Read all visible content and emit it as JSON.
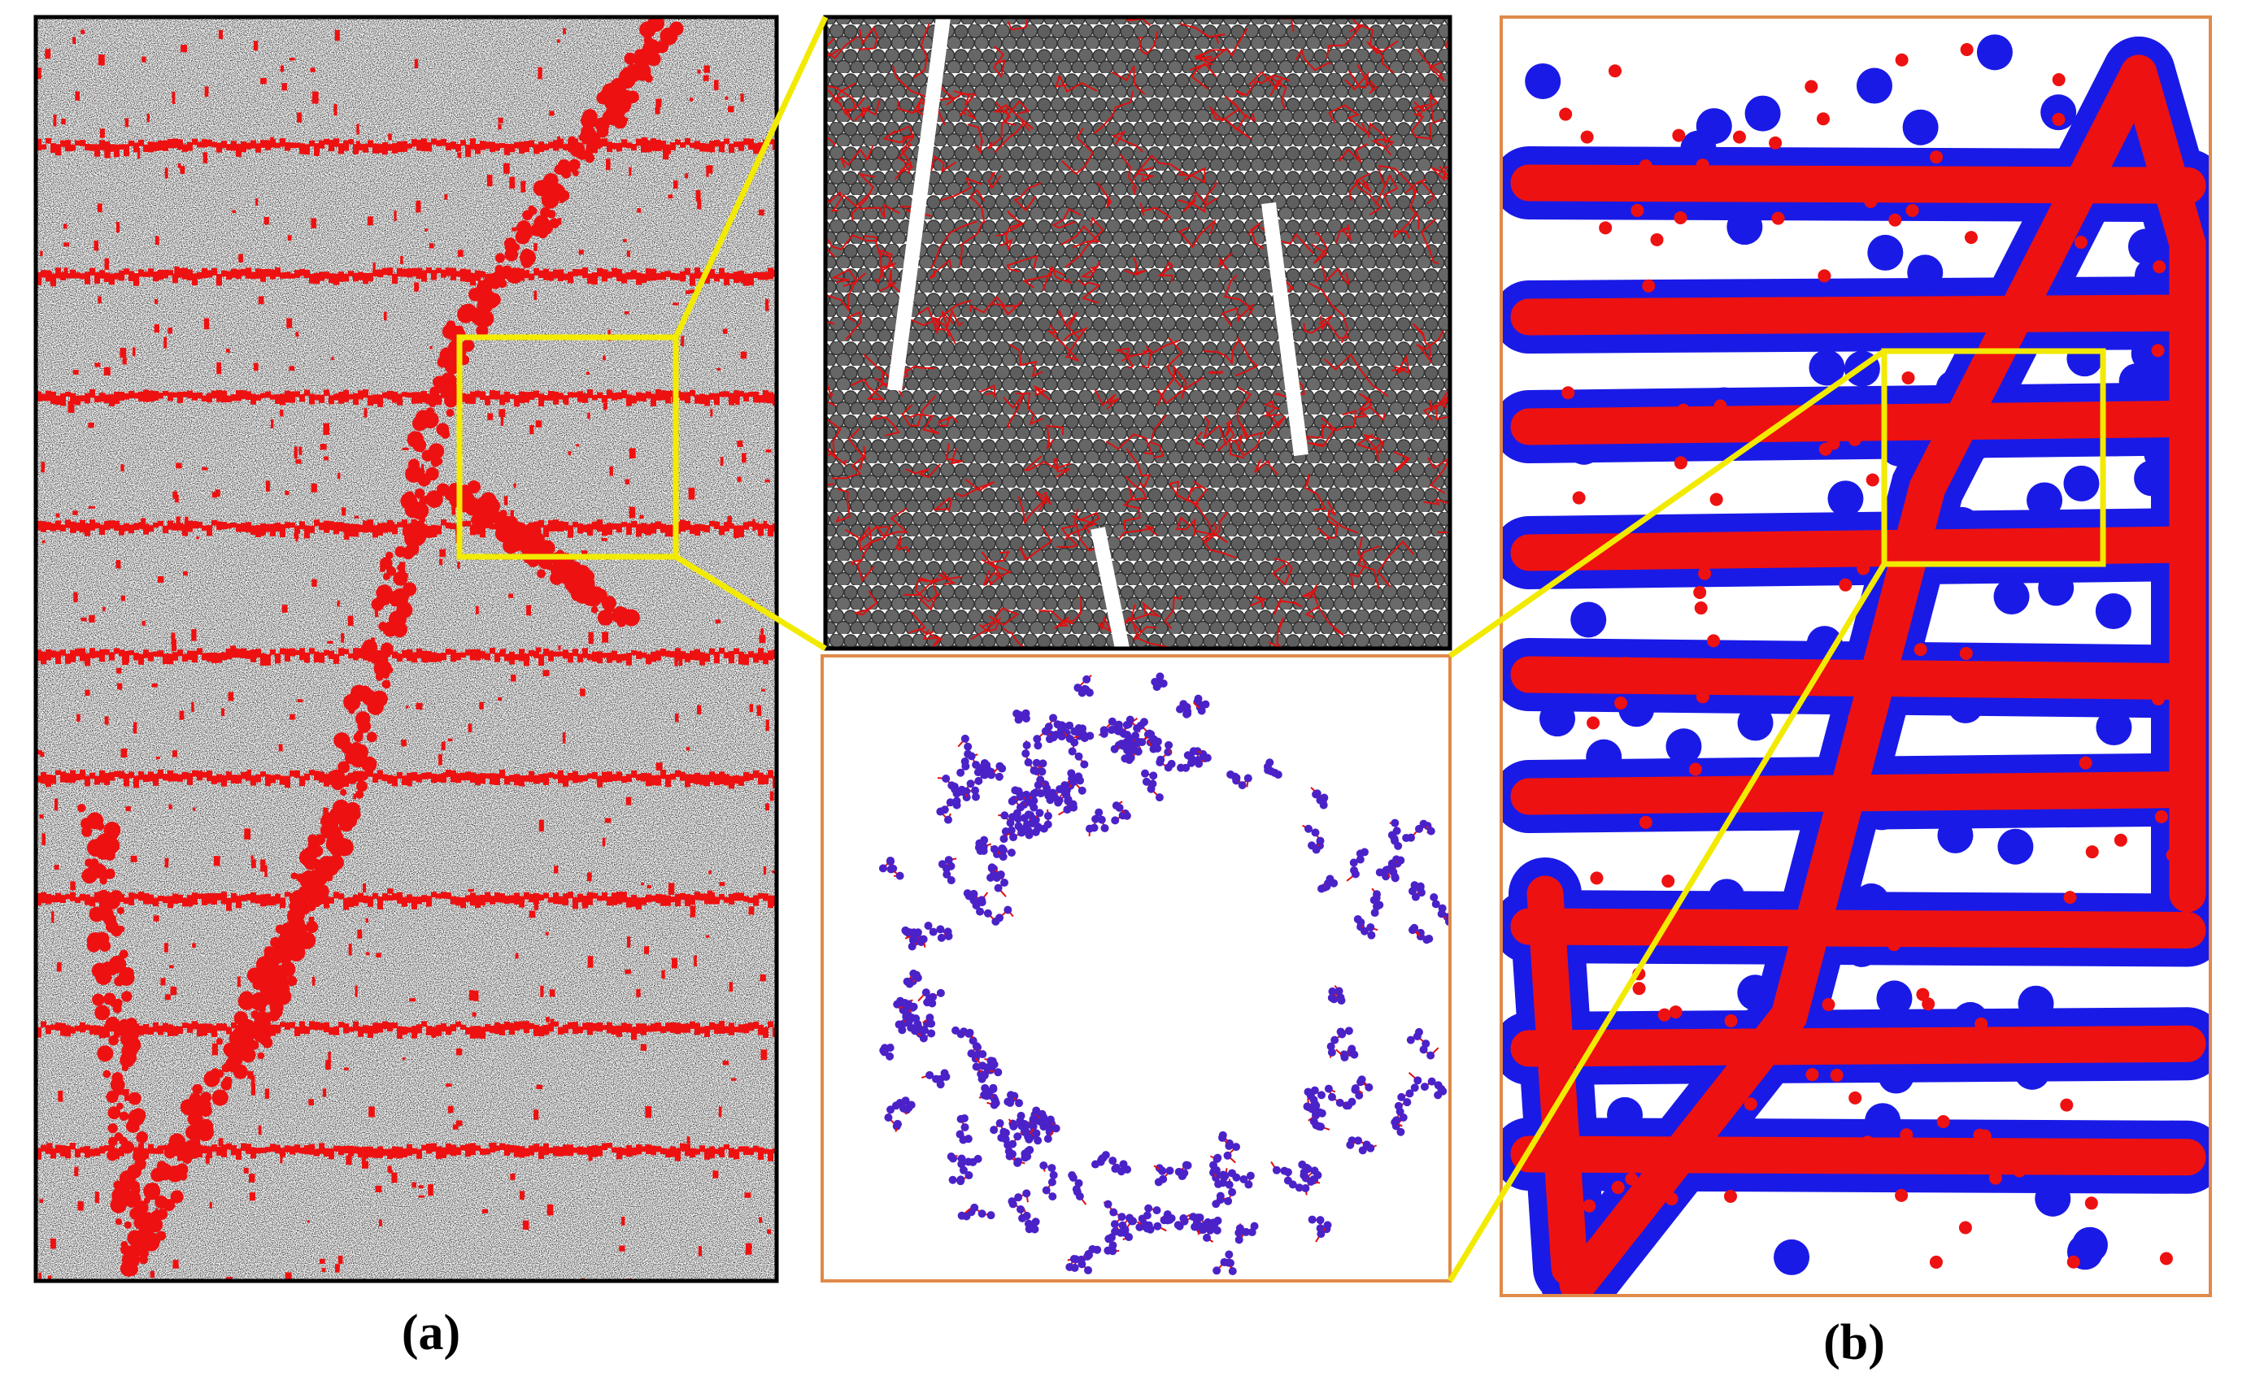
{
  "labels": {
    "a": "(a)",
    "b": "(b)"
  }
}
